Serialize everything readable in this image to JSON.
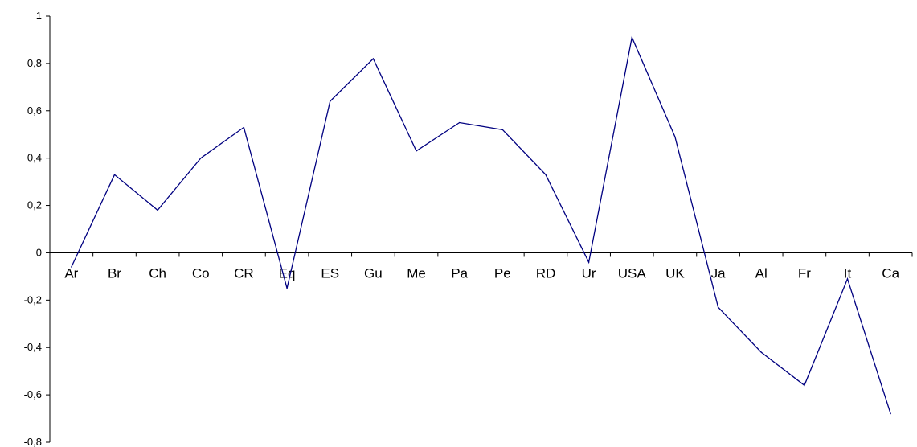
{
  "chart_data": {
    "type": "line",
    "title": "",
    "xlabel": "",
    "ylabel": "",
    "categories": [
      "Ar",
      "Br",
      "Ch",
      "Co",
      "CR",
      "Eq",
      "ES",
      "Gu",
      "Me",
      "Pa",
      "Pe",
      "RD",
      "Ur",
      "USA",
      "UK",
      "Ja",
      "Al",
      "Fr",
      "It",
      "Ca"
    ],
    "series": [
      {
        "values": [
          -0.06,
          0.33,
          0.18,
          0.4,
          0.53,
          -0.15,
          0.64,
          0.82,
          0.43,
          0.55,
          0.52,
          0.33,
          -0.04,
          0.91,
          0.49,
          -0.23,
          -0.42,
          -0.56,
          -0.11,
          -0.68
        ],
        "color": "#000080"
      }
    ],
    "ylim": [
      -0.8,
      1
    ],
    "yticks": [
      -0.8,
      -0.6,
      -0.4,
      -0.2,
      0,
      0.2,
      0.4,
      0.6,
      0.8,
      1
    ],
    "ytick_labels": [
      "-0,8",
      "-0,6",
      "-0,4",
      "-0,2",
      "0",
      "0,2",
      "0,4",
      "0,6",
      "0,8",
      "1"
    ],
    "grid": false,
    "legend": "none"
  }
}
